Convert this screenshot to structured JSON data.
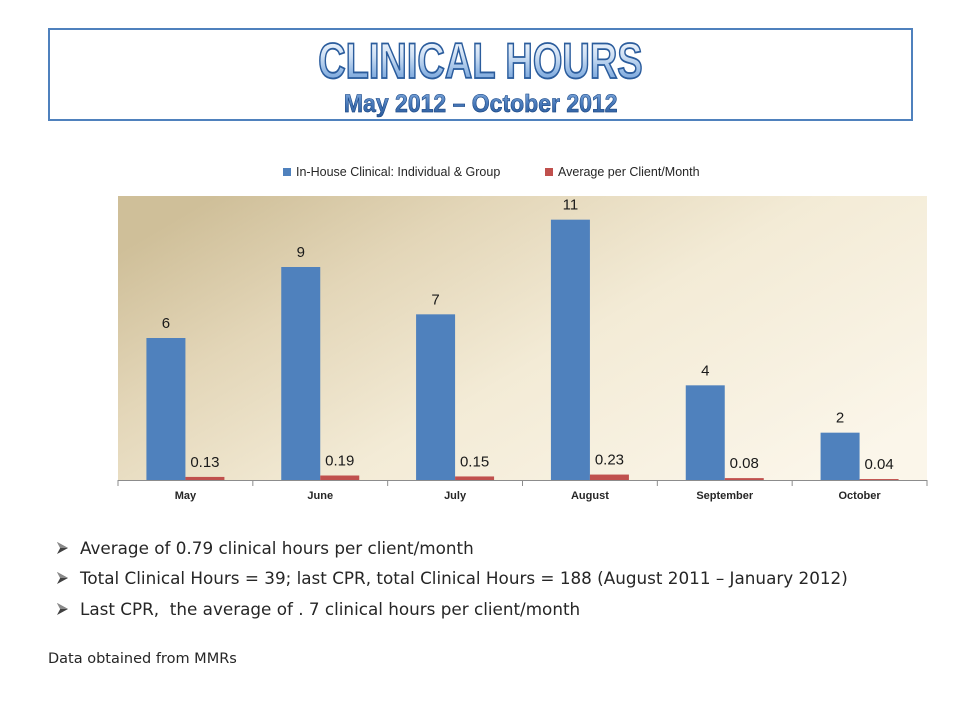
{
  "slide": {
    "title": "CLINICAL HOURS",
    "subtitle": "May 2012 – October 2012",
    "bullets": [
      "Average of 0.79 clinical hours per client/month",
      "Total Clinical Hours = 39; last CPR, total Clinical Hours = 188 (August 2011 – January 2012)",
      "Last CPR,  the average of . 7 clinical hours per client/month"
    ],
    "bullet_icon": "arrowhead-bullet-icon",
    "footer": "Data obtained from MMRs"
  },
  "colors": {
    "title_box_border": "#4F81BD",
    "title_outline": "#2B5C9C"
  },
  "chart_data": {
    "type": "bar",
    "categories": [
      "May",
      "June",
      "July",
      "August",
      "September",
      "October"
    ],
    "series": [
      {
        "name": "In-House Clinical: Individual & Group",
        "color": "#4F81BD",
        "values": [
          6,
          9,
          7,
          11,
          4,
          2
        ]
      },
      {
        "name": "Average per Client/Month",
        "color": "#C0504D",
        "values": [
          0.13,
          0.19,
          0.15,
          0.23,
          0.08,
          0.04
        ]
      }
    ],
    "ylim": [
      0,
      12
    ],
    "grid": false,
    "legend": "top",
    "data_labels": true
  }
}
